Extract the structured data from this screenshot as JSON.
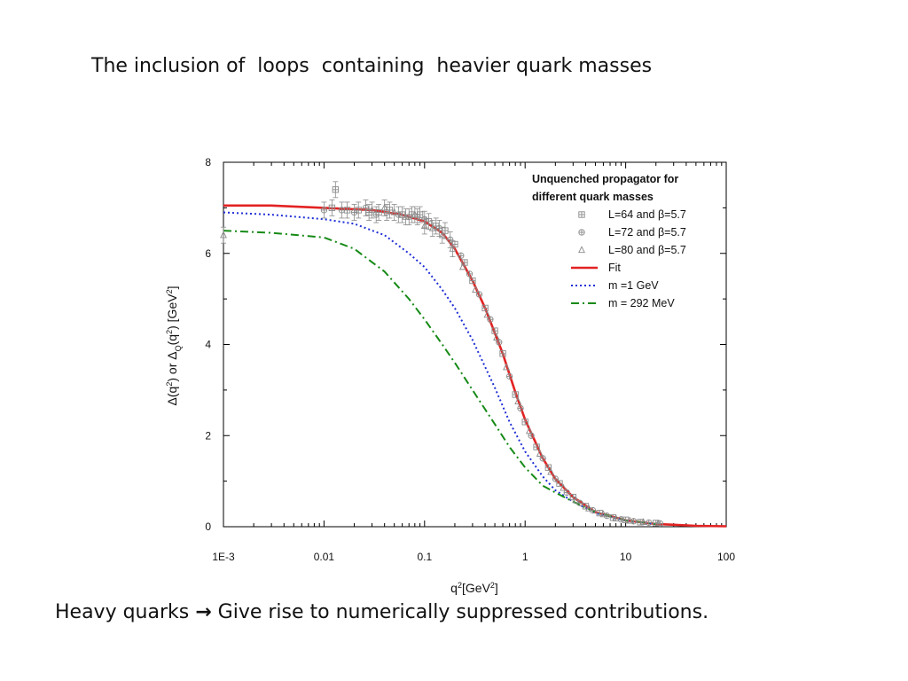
{
  "slide": {
    "title": "The inclusion of  loops  containing  heavier quark masses",
    "caption_start": "Heavy quarks ",
    "caption_arrow": "→",
    "caption_end": " Give rise to numerically suppressed contributions."
  },
  "chart_data": {
    "type": "scatter",
    "xscale": "log",
    "xlim": [
      0.001,
      100
    ],
    "ylim": [
      0,
      8
    ],
    "x_tick_labels": [
      "1E-3",
      "0.01",
      "0.1",
      "1",
      "10",
      "100"
    ],
    "x_tick_values": [
      0.001,
      0.01,
      0.1,
      1,
      10,
      100
    ],
    "y_tick_labels": [
      "0",
      "2",
      "4",
      "6",
      "8"
    ],
    "y_tick_values": [
      0,
      2,
      4,
      6,
      8
    ],
    "xlabel": "q²[GeV²]",
    "ylabel": "Δ(q²) or Δ_Q(q²) [GeV²]",
    "legend_position": "top-right",
    "legend_title_line1": "Unquenched propagator for",
    "legend_title_line2": "different quark masses",
    "colors": {
      "fit": "#e32222",
      "m1": "#1f2fd6",
      "m292": "#168a16",
      "data": "#8a8a8a"
    },
    "series": [
      {
        "name": "L=64 and β=5.7",
        "kind": "points",
        "marker": "square-cross",
        "points": [
          [
            0.012,
            7.0
          ],
          [
            0.013,
            7.4
          ],
          [
            0.017,
            6.95
          ],
          [
            0.022,
            6.95
          ],
          [
            0.028,
            6.9
          ],
          [
            0.035,
            6.9
          ],
          [
            0.045,
            6.95
          ],
          [
            0.06,
            6.85
          ],
          [
            0.075,
            6.85
          ],
          [
            0.09,
            6.85
          ],
          [
            0.11,
            6.7
          ],
          [
            0.13,
            6.6
          ],
          [
            0.16,
            6.5
          ],
          [
            0.2,
            6.2
          ],
          [
            0.25,
            5.8
          ],
          [
            0.3,
            5.4
          ],
          [
            0.4,
            4.8
          ],
          [
            0.5,
            4.3
          ],
          [
            0.6,
            3.8
          ],
          [
            0.8,
            2.9
          ],
          [
            1.0,
            2.3
          ],
          [
            1.3,
            1.75
          ],
          [
            1.7,
            1.3
          ],
          [
            2.2,
            0.95
          ],
          [
            3.0,
            0.65
          ],
          [
            4.0,
            0.45
          ],
          [
            5.5,
            0.3
          ],
          [
            7.5,
            0.2
          ],
          [
            10.0,
            0.15
          ],
          [
            14.0,
            0.1
          ],
          [
            20.0,
            0.08
          ]
        ]
      },
      {
        "name": "L=72 and β=5.7",
        "kind": "points",
        "marker": "circle-cross",
        "points": [
          [
            0.01,
            6.95
          ],
          [
            0.015,
            6.95
          ],
          [
            0.02,
            6.9
          ],
          [
            0.026,
            7.0
          ],
          [
            0.033,
            6.85
          ],
          [
            0.042,
            6.9
          ],
          [
            0.055,
            6.85
          ],
          [
            0.07,
            6.8
          ],
          [
            0.085,
            6.8
          ],
          [
            0.1,
            6.75
          ],
          [
            0.14,
            6.55
          ],
          [
            0.18,
            6.3
          ],
          [
            0.23,
            5.95
          ],
          [
            0.28,
            5.55
          ],
          [
            0.35,
            5.1
          ],
          [
            0.45,
            4.55
          ],
          [
            0.55,
            4.05
          ],
          [
            0.7,
            3.3
          ],
          [
            0.9,
            2.6
          ],
          [
            1.15,
            2.0
          ],
          [
            1.5,
            1.5
          ],
          [
            2.0,
            1.05
          ],
          [
            2.6,
            0.75
          ],
          [
            3.5,
            0.52
          ],
          [
            4.7,
            0.36
          ],
          [
            6.5,
            0.24
          ],
          [
            9.0,
            0.16
          ],
          [
            12.0,
            0.12
          ],
          [
            17.0,
            0.09
          ],
          [
            22.0,
            0.07
          ]
        ]
      },
      {
        "name": "L=80 and β=5.7",
        "kind": "points",
        "marker": "triangle",
        "points": [
          [
            0.001,
            6.4
          ],
          [
            0.03,
            6.95
          ],
          [
            0.04,
            7.0
          ],
          [
            0.05,
            6.9
          ],
          [
            0.065,
            6.8
          ],
          [
            0.08,
            6.85
          ],
          [
            0.1,
            6.6
          ],
          [
            0.12,
            6.55
          ],
          [
            0.15,
            6.4
          ],
          [
            0.19,
            6.1
          ],
          [
            0.24,
            5.7
          ],
          [
            0.32,
            5.2
          ],
          [
            0.42,
            4.65
          ],
          [
            0.52,
            4.15
          ],
          [
            0.65,
            3.5
          ],
          [
            0.85,
            2.75
          ],
          [
            1.1,
            2.1
          ],
          [
            1.4,
            1.6
          ],
          [
            1.8,
            1.2
          ],
          [
            2.4,
            0.85
          ],
          [
            3.2,
            0.58
          ],
          [
            4.3,
            0.4
          ],
          [
            6.0,
            0.27
          ],
          [
            8.0,
            0.18
          ],
          [
            11.0,
            0.13
          ],
          [
            15.0,
            0.1
          ],
          [
            21.0,
            0.07
          ]
        ]
      },
      {
        "name": "Fit",
        "kind": "line",
        "style": "solid",
        "points": [
          [
            0.001,
            7.05
          ],
          [
            0.003,
            7.05
          ],
          [
            0.01,
            7.0
          ],
          [
            0.03,
            6.95
          ],
          [
            0.06,
            6.85
          ],
          [
            0.1,
            6.7
          ],
          [
            0.15,
            6.45
          ],
          [
            0.2,
            6.1
          ],
          [
            0.3,
            5.4
          ],
          [
            0.4,
            4.8
          ],
          [
            0.5,
            4.25
          ],
          [
            0.6,
            3.8
          ],
          [
            0.8,
            2.95
          ],
          [
            1.0,
            2.35
          ],
          [
            1.5,
            1.5
          ],
          [
            2.0,
            1.05
          ],
          [
            3.0,
            0.65
          ],
          [
            5.0,
            0.32
          ],
          [
            10.0,
            0.14
          ],
          [
            20.0,
            0.06
          ],
          [
            50.0,
            0.02
          ],
          [
            100.0,
            0.01
          ]
        ]
      },
      {
        "name": "m =1 GeV",
        "kind": "line",
        "style": "dotted",
        "points": [
          [
            0.001,
            6.9
          ],
          [
            0.003,
            6.85
          ],
          [
            0.01,
            6.75
          ],
          [
            0.02,
            6.65
          ],
          [
            0.04,
            6.4
          ],
          [
            0.07,
            6.0
          ],
          [
            0.1,
            5.7
          ],
          [
            0.15,
            5.2
          ],
          [
            0.2,
            4.8
          ],
          [
            0.3,
            4.1
          ],
          [
            0.5,
            3.05
          ],
          [
            0.7,
            2.3
          ],
          [
            1.0,
            1.65
          ],
          [
            1.5,
            1.1
          ],
          [
            2.0,
            0.8
          ],
          [
            3.0,
            0.55
          ],
          [
            5.0,
            0.3
          ],
          [
            10.0,
            0.13
          ],
          [
            20.0,
            0.06
          ]
        ]
      },
      {
        "name": "m = 292 MeV",
        "kind": "line",
        "style": "dashdot",
        "points": [
          [
            0.001,
            6.5
          ],
          [
            0.003,
            6.45
          ],
          [
            0.01,
            6.35
          ],
          [
            0.02,
            6.1
          ],
          [
            0.04,
            5.6
          ],
          [
            0.07,
            5.0
          ],
          [
            0.1,
            4.55
          ],
          [
            0.15,
            4.0
          ],
          [
            0.2,
            3.6
          ],
          [
            0.3,
            3.0
          ],
          [
            0.5,
            2.25
          ],
          [
            0.7,
            1.75
          ],
          [
            1.0,
            1.3
          ],
          [
            1.5,
            0.9
          ],
          [
            2.0,
            0.75
          ],
          [
            3.0,
            0.55
          ],
          [
            5.0,
            0.32
          ],
          [
            10.0,
            0.14
          ],
          [
            20.0,
            0.06
          ]
        ]
      }
    ]
  }
}
